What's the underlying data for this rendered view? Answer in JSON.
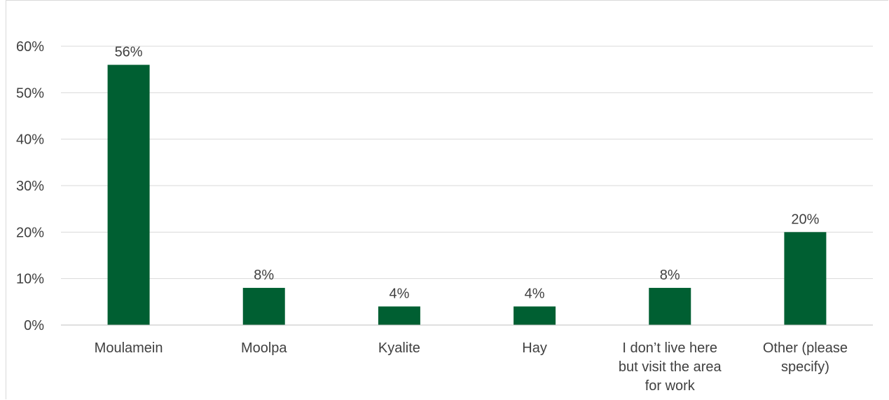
{
  "chart_data": {
    "type": "bar",
    "title": "",
    "xlabel": "",
    "ylabel": "",
    "categories": [
      [
        "Moulamein"
      ],
      [
        "Moolpa"
      ],
      [
        "Kyalite"
      ],
      [
        "Hay"
      ],
      [
        "I don’t live here",
        "but visit the area",
        "for work"
      ],
      [
        "Other (please",
        "specify)"
      ]
    ],
    "values": [
      56,
      8,
      4,
      4,
      8,
      20
    ],
    "data_labels": [
      "56%",
      "8%",
      "4%",
      "4%",
      "8%",
      "20%"
    ],
    "ylim": [
      0,
      60
    ],
    "yticks": [
      0,
      10,
      20,
      30,
      40,
      50,
      60
    ],
    "ytick_labels": [
      "0%",
      "10%",
      "20%",
      "30%",
      "40%",
      "50%",
      "60%"
    ],
    "grid": true,
    "legend": "none",
    "colors": {
      "bar": "#005f32",
      "grid": "#d9d9d9",
      "axis": "#bfbfbf",
      "text": "#404040"
    }
  }
}
